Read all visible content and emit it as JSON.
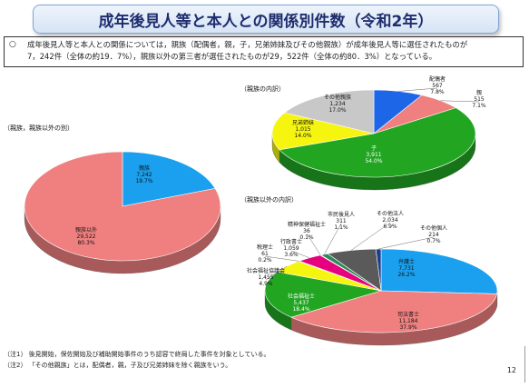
{
  "title": "成年後見人等と本人との関係別件数（令和2年）",
  "description": {
    "bullet": "○",
    "lines": [
      "成年後見人等と本人との関係については，親族（配偶者，親，子，兄弟姉妹及びその他親族）が成年後見人等に選任されたものが",
      "7，242件（全体の約19．7%），親族以外の第三者が選任されたものが29，522件（全体の約80．3%）となっている。"
    ]
  },
  "notes": [
    "（注1） 後見開始，保佐開始及び補助開始事件のうち認容で終局した事件を対象としている。",
    "（注2） 「その他親族」とは，配偶者，親，子及び兄弟姉妹を除く親族をいう。"
  ],
  "page_number": "12",
  "chart_data": [
    {
      "type": "pie",
      "title": "（親族，親族以外の別）",
      "slices": [
        {
          "label": "親族",
          "count": "7,242",
          "pct": "19.7%",
          "value": 7242,
          "color": "#1aa0ee"
        },
        {
          "label": "親族以外",
          "count": "29,522",
          "pct": "80.3%",
          "value": 29522,
          "color": "#f08080"
        }
      ]
    },
    {
      "type": "pie",
      "title": "（親族の内訳）",
      "slices": [
        {
          "label": "配偶者",
          "count": "567",
          "pct": "7.8%",
          "value": 567,
          "color": "#1e66e8"
        },
        {
          "label": "親",
          "count": "515",
          "pct": "7.1%",
          "value": 515,
          "color": "#f08080"
        },
        {
          "label": "子",
          "count": "3,911",
          "pct": "54.0%",
          "value": 3911,
          "color": "#22a622"
        },
        {
          "label": "兄弟姉妹",
          "count": "1,015",
          "pct": "14.0%",
          "value": 1015,
          "color": "#f5f50f"
        },
        {
          "label": "その他親族",
          "count": "1,234",
          "pct": "17.0%",
          "value": 1234,
          "color": "#c8c8c8"
        }
      ]
    },
    {
      "type": "pie",
      "title": "（親族以外の内訳）",
      "slices": [
        {
          "label": "弁護士",
          "count": "7,731",
          "pct": "26.2%",
          "value": 7731,
          "color": "#1aa0ee"
        },
        {
          "label": "司法書士",
          "count": "11,184",
          "pct": "37.9%",
          "value": 11184,
          "color": "#f08080"
        },
        {
          "label": "社会福祉士",
          "count": "5,437",
          "pct": "18.4%",
          "value": 5437,
          "color": "#22a622"
        },
        {
          "label": "社会福祉協議会",
          "count": "1,455",
          "pct": "4.9%",
          "value": 1455,
          "color": "#f5f50f"
        },
        {
          "label": "税理士",
          "count": "61",
          "pct": "0.2%",
          "value": 61,
          "color": "#7030a0"
        },
        {
          "label": "行政書士",
          "count": "1,059",
          "pct": "3.6%",
          "value": 1059,
          "color": "#e6007e"
        },
        {
          "label": "精神保健福祉士",
          "count": "36",
          "pct": "0.1%",
          "value": 36,
          "color": "#3a7bd5"
        },
        {
          "label": "市民後見人",
          "count": "311",
          "pct": "1.1%",
          "value": 311,
          "color": "#2e8b57"
        },
        {
          "label": "その他法人",
          "count": "2,034",
          "pct": "6.9%",
          "value": 2034,
          "color": "#5a5a5a"
        },
        {
          "label": "その他個人",
          "count": "214",
          "pct": "0.7%",
          "value": 214,
          "color": "#1b3f8f"
        }
      ]
    }
  ]
}
